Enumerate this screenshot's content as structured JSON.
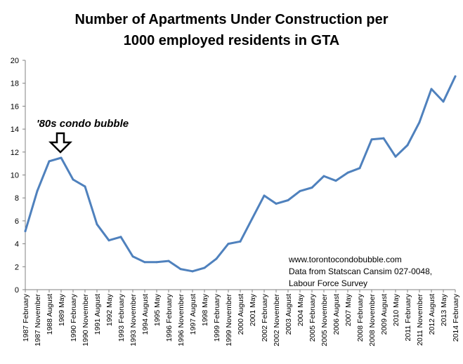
{
  "chart_data": {
    "type": "line",
    "title": [
      "Number  of Apartments Under Construction per",
      "1000 employed residents in GTA"
    ],
    "xlabel": "",
    "ylabel": "",
    "ylim": [
      0,
      20
    ],
    "yticks": [
      0,
      2,
      4,
      6,
      8,
      10,
      12,
      14,
      16,
      18,
      20
    ],
    "x_tick_labels": [
      "1987 February",
      "1987 November",
      "1988 August",
      "1989 May",
      "1990 February",
      "1990 November",
      "1991 August",
      "1992 May",
      "1993 February",
      "1993 November",
      "1994 August",
      "1995 May",
      "1996 February",
      "1996 November",
      "1997 August",
      "1998 May",
      "1999 February",
      "1999 November",
      "2000 August",
      "2001 May",
      "2002 February",
      "2002 November",
      "2003 August",
      "2004 May",
      "2005 February",
      "2005 November",
      "2006 August",
      "2007 May",
      "2008 February",
      "2008 November",
      "2009 August",
      "2010 May",
      "2011 February",
      "2011 November",
      "2012 August",
      "2013 May",
      "2014 February"
    ],
    "grid": false,
    "legend": "none",
    "series": [
      {
        "color": "#4f81bd",
        "x": [
          "1987 February",
          "1987 November",
          "1988 August",
          "1989 May",
          "1990 February",
          "1990 November",
          "1991 August",
          "1992 May",
          "1993 February",
          "1993 November",
          "1994 August",
          "1995 May",
          "1996 February",
          "1996 November",
          "1997 August",
          "1998 May",
          "1999 February",
          "1999 November",
          "2000 August",
          "2001 May",
          "2002 February",
          "2002 November",
          "2003 August",
          "2004 May",
          "2005 February",
          "2005 November",
          "2006 August",
          "2007 May",
          "2008 February",
          "2008 November",
          "2009 August",
          "2010 May",
          "2011 February",
          "2011 November",
          "2012 August",
          "2013 May",
          "2014 February"
        ],
        "values": [
          5.1,
          8.6,
          11.2,
          11.5,
          9.6,
          9.0,
          5.7,
          4.3,
          4.6,
          2.9,
          2.4,
          2.4,
          2.5,
          1.8,
          1.6,
          1.9,
          2.7,
          4.0,
          4.2,
          6.2,
          8.2,
          7.5,
          7.8,
          8.6,
          8.9,
          9.9,
          9.5,
          10.2,
          10.6,
          13.1,
          13.2,
          11.6,
          12.6,
          14.6,
          17.5,
          16.4,
          18.6
        ]
      }
    ],
    "annotations": [
      {
        "text": "'80s condo bubble",
        "target_x": "1988 August"
      },
      {
        "text": "www.torontocondobubble.com"
      },
      {
        "text": "Data from Statscan  Cansim 027-0048,"
      },
      {
        "text": "Labour Force Survey"
      }
    ]
  }
}
